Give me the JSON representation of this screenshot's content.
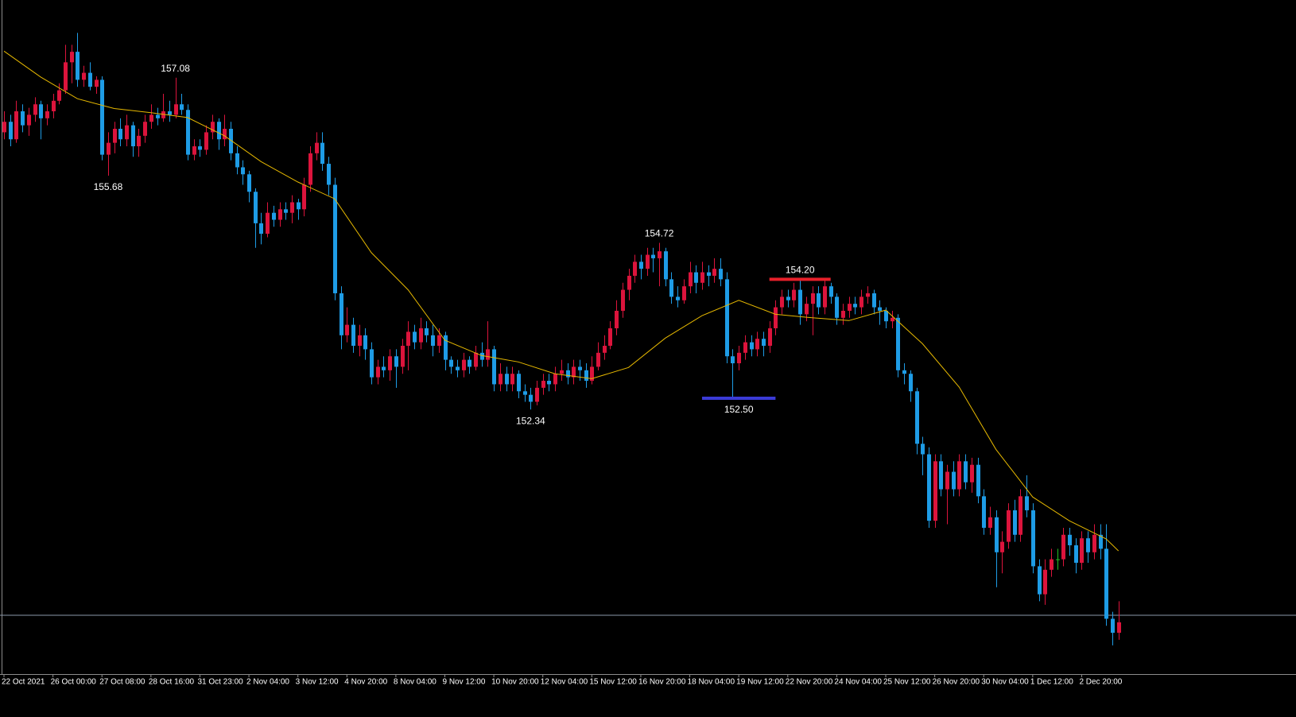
{
  "chart_data": {
    "type": "candlestick",
    "up_color": "#dc143c",
    "down_color": "#1e9ce6",
    "doji_color": "#22c022",
    "ylim": [
      148.56,
      158.19
    ],
    "xlim": [
      -0.65,
      211
    ],
    "xticks": [
      {
        "value": 0,
        "label": "22 Oct 2021"
      },
      {
        "value": 8,
        "label": "26 Oct 00:00"
      },
      {
        "value": 16,
        "label": "27 Oct 08:00"
      },
      {
        "value": 24,
        "label": "28 Oct 16:00"
      },
      {
        "value": 32,
        "label": "31 Oct 23:00"
      },
      {
        "value": 40,
        "label": "2 Nov 04:00"
      },
      {
        "value": 48,
        "label": "3 Nov 12:00"
      },
      {
        "value": 56,
        "label": "4 Nov 20:00"
      },
      {
        "value": 64,
        "label": "8 Nov 04:00"
      },
      {
        "value": 72,
        "label": "9 Nov 12:00"
      },
      {
        "value": 80,
        "label": "10 Nov 20:00"
      },
      {
        "value": 88,
        "label": "12 Nov 04:00"
      },
      {
        "value": 96,
        "label": "15 Nov 12:00"
      },
      {
        "value": 104,
        "label": "16 Nov 20:00"
      },
      {
        "value": 112,
        "label": "18 Nov 04:00"
      },
      {
        "value": 120,
        "label": "19 Nov 12:00"
      },
      {
        "value": 128,
        "label": "22 Nov 20:00"
      },
      {
        "value": 136,
        "label": "24 Nov 04:00"
      },
      {
        "value": 144,
        "label": "25 Nov 12:00"
      },
      {
        "value": 152,
        "label": "26 Nov 20:00"
      },
      {
        "value": 160,
        "label": "30 Nov 04:00"
      },
      {
        "value": 168,
        "label": "1 Dec 12:00"
      },
      {
        "value": 176,
        "label": "2 Dec 20:00"
      }
    ],
    "ohlc": [
      [
        156.3,
        156.6,
        156.2,
        156.45
      ],
      [
        156.45,
        156.55,
        156.1,
        156.2
      ],
      [
        156.2,
        156.75,
        156.15,
        156.6
      ],
      [
        156.6,
        156.7,
        156.3,
        156.4
      ],
      [
        156.4,
        156.65,
        156.25,
        156.55
      ],
      [
        156.55,
        156.8,
        156.45,
        156.7
      ],
      [
        156.7,
        156.75,
        156.2,
        156.5
      ],
      [
        156.5,
        156.7,
        156.4,
        156.6
      ],
      [
        156.6,
        156.85,
        156.5,
        156.75
      ],
      [
        156.75,
        157.0,
        156.7,
        156.9
      ],
      [
        156.9,
        157.55,
        156.85,
        157.3
      ],
      [
        157.3,
        157.55,
        157.0,
        157.45
      ],
      [
        157.45,
        157.72,
        156.95,
        157.05
      ],
      [
        157.05,
        157.25,
        156.95,
        157.15
      ],
      [
        157.15,
        157.3,
        156.9,
        156.95
      ],
      [
        156.95,
        157.1,
        156.85,
        157.05
      ],
      [
        157.05,
        157.1,
        155.9,
        155.98
      ],
      [
        155.98,
        156.3,
        155.68,
        156.15
      ],
      [
        156.15,
        156.45,
        156.0,
        156.35
      ],
      [
        156.35,
        156.5,
        156.1,
        156.2
      ],
      [
        156.2,
        156.55,
        156.1,
        156.4
      ],
      [
        156.4,
        156.45,
        155.95,
        156.1
      ],
      [
        156.1,
        156.35,
        155.95,
        156.25
      ],
      [
        156.25,
        156.55,
        156.15,
        156.45
      ],
      [
        156.45,
        156.7,
        156.35,
        156.55
      ],
      [
        156.55,
        156.65,
        156.4,
        156.5
      ],
      [
        156.5,
        156.85,
        156.45,
        156.6
      ],
      [
        156.6,
        156.75,
        156.45,
        156.55
      ],
      [
        156.55,
        157.08,
        156.5,
        156.7
      ],
      [
        156.7,
        156.85,
        156.55,
        156.62
      ],
      [
        156.62,
        156.7,
        155.9,
        155.98
      ],
      [
        155.98,
        156.2,
        155.9,
        156.1
      ],
      [
        156.1,
        156.2,
        155.95,
        156.05
      ],
      [
        156.05,
        156.4,
        155.98,
        156.3
      ],
      [
        156.3,
        156.55,
        156.2,
        156.45
      ],
      [
        156.45,
        156.5,
        156.05,
        156.2
      ],
      [
        156.2,
        156.55,
        156.1,
        156.35
      ],
      [
        156.35,
        156.45,
        155.9,
        156.0
      ],
      [
        156.0,
        156.1,
        155.7,
        155.8
      ],
      [
        155.8,
        155.9,
        155.55,
        155.7
      ],
      [
        155.7,
        155.75,
        155.3,
        155.45
      ],
      [
        155.45,
        155.5,
        154.65,
        155.0
      ],
      [
        155.0,
        155.15,
        154.7,
        154.85
      ],
      [
        154.85,
        155.3,
        154.8,
        155.15
      ],
      [
        155.15,
        155.25,
        154.95,
        155.05
      ],
      [
        155.05,
        155.3,
        154.95,
        155.2
      ],
      [
        155.2,
        155.3,
        155.05,
        155.15
      ],
      [
        155.15,
        155.4,
        155.0,
        155.3
      ],
      [
        155.3,
        155.35,
        155.05,
        155.2
      ],
      [
        155.2,
        155.65,
        155.1,
        155.55
      ],
      [
        155.55,
        156.1,
        155.45,
        156.0
      ],
      [
        156.0,
        156.3,
        155.9,
        156.15
      ],
      [
        156.15,
        156.3,
        155.75,
        155.85
      ],
      [
        155.85,
        155.95,
        155.4,
        155.55
      ],
      [
        155.55,
        155.65,
        153.9,
        154.0
      ],
      [
        154.0,
        154.1,
        153.2,
        153.4
      ],
      [
        153.4,
        153.8,
        153.3,
        153.55
      ],
      [
        153.55,
        153.65,
        153.15,
        153.25
      ],
      [
        153.25,
        153.55,
        153.1,
        153.4
      ],
      [
        153.4,
        153.5,
        153.05,
        153.2
      ],
      [
        153.2,
        153.3,
        152.7,
        152.8
      ],
      [
        152.8,
        153.05,
        152.7,
        152.95
      ],
      [
        152.95,
        153.1,
        152.8,
        152.9
      ],
      [
        152.9,
        153.2,
        152.75,
        153.1
      ],
      [
        153.1,
        153.2,
        152.65,
        152.95
      ],
      [
        152.95,
        153.35,
        152.85,
        153.25
      ],
      [
        153.25,
        153.6,
        152.9,
        153.45
      ],
      [
        153.45,
        153.55,
        153.2,
        153.3
      ],
      [
        153.3,
        153.65,
        153.2,
        153.5
      ],
      [
        153.5,
        153.6,
        153.3,
        153.4
      ],
      [
        153.4,
        153.55,
        153.1,
        153.25
      ],
      [
        153.25,
        153.5,
        153.15,
        153.4
      ],
      [
        153.4,
        153.45,
        152.9,
        153.05
      ],
      [
        153.05,
        153.1,
        152.85,
        152.95
      ],
      [
        152.95,
        153.05,
        152.8,
        152.9
      ],
      [
        152.9,
        153.15,
        152.8,
        153.05
      ],
      [
        153.05,
        153.1,
        152.85,
        152.95
      ],
      [
        152.95,
        153.25,
        152.9,
        153.15
      ],
      [
        153.15,
        153.3,
        152.95,
        153.05
      ],
      [
        153.05,
        153.6,
        152.95,
        153.2
      ],
      [
        153.2,
        153.25,
        152.6,
        152.7
      ],
      [
        152.7,
        153.0,
        152.6,
        152.85
      ],
      [
        152.85,
        152.95,
        152.6,
        152.7
      ],
      [
        152.7,
        152.95,
        152.6,
        152.85
      ],
      [
        152.85,
        152.9,
        152.5,
        152.6
      ],
      [
        152.6,
        152.7,
        152.45,
        152.55
      ],
      [
        152.55,
        152.65,
        152.34,
        152.45
      ],
      [
        152.45,
        152.75,
        152.4,
        152.65
      ],
      [
        152.65,
        152.85,
        152.55,
        152.75
      ],
      [
        152.75,
        152.85,
        152.6,
        152.7
      ],
      [
        152.7,
        152.95,
        152.6,
        152.85
      ],
      [
        152.85,
        153.05,
        152.75,
        152.9
      ],
      [
        152.9,
        153.0,
        152.7,
        152.8
      ],
      [
        152.8,
        153.05,
        152.7,
        152.95
      ],
      [
        152.95,
        153.05,
        152.75,
        152.9
      ],
      [
        152.9,
        153.0,
        152.65,
        152.75
      ],
      [
        152.75,
        153.1,
        152.7,
        152.95
      ],
      [
        152.95,
        153.3,
        152.9,
        153.15
      ],
      [
        153.15,
        153.4,
        153.05,
        153.25
      ],
      [
        153.25,
        153.6,
        153.2,
        153.5
      ],
      [
        153.5,
        153.9,
        153.4,
        153.75
      ],
      [
        153.75,
        154.15,
        153.65,
        154.05
      ],
      [
        154.05,
        154.35,
        153.9,
        154.25
      ],
      [
        154.25,
        154.55,
        154.15,
        154.45
      ],
      [
        154.45,
        154.55,
        154.2,
        154.35
      ],
      [
        154.35,
        154.65,
        154.25,
        154.55
      ],
      [
        154.55,
        154.65,
        154.3,
        154.5
      ],
      [
        154.5,
        154.72,
        154.1,
        154.6
      ],
      [
        154.6,
        154.65,
        154.1,
        154.2
      ],
      [
        154.2,
        154.3,
        153.85,
        153.95
      ],
      [
        153.95,
        154.1,
        153.8,
        153.9
      ],
      [
        153.9,
        154.2,
        153.85,
        154.1
      ],
      [
        154.1,
        154.45,
        154.0,
        154.3
      ],
      [
        154.3,
        154.4,
        154.0,
        154.15
      ],
      [
        154.15,
        154.45,
        154.05,
        154.3
      ],
      [
        154.3,
        154.4,
        154.1,
        154.25
      ],
      [
        154.25,
        154.5,
        154.15,
        154.35
      ],
      [
        154.35,
        154.5,
        154.1,
        154.2
      ],
      [
        154.2,
        154.3,
        153.0,
        153.1
      ],
      [
        153.1,
        153.2,
        152.5,
        153.0
      ],
      [
        153.0,
        153.25,
        152.9,
        153.15
      ],
      [
        153.15,
        153.4,
        153.05,
        153.3
      ],
      [
        153.3,
        153.4,
        153.1,
        153.2
      ],
      [
        153.2,
        153.45,
        153.1,
        153.35
      ],
      [
        153.35,
        153.45,
        153.1,
        153.25
      ],
      [
        153.25,
        153.6,
        153.15,
        153.5
      ],
      [
        153.5,
        153.9,
        153.4,
        153.8
      ],
      [
        153.8,
        154.05,
        153.7,
        153.95
      ],
      [
        153.95,
        154.05,
        153.8,
        153.9
      ],
      [
        153.9,
        154.15,
        153.8,
        154.05
      ],
      [
        154.05,
        154.2,
        153.55,
        153.7
      ],
      [
        153.7,
        153.95,
        153.6,
        153.85
      ],
      [
        153.85,
        154.1,
        153.4,
        154.0
      ],
      [
        154.0,
        154.1,
        153.7,
        153.8
      ],
      [
        153.8,
        154.2,
        153.7,
        154.1
      ],
      [
        154.1,
        154.15,
        153.85,
        153.95
      ],
      [
        153.95,
        154.0,
        153.55,
        153.65
      ],
      [
        153.65,
        153.85,
        153.55,
        153.75
      ],
      [
        153.75,
        153.95,
        153.65,
        153.85
      ],
      [
        153.85,
        153.95,
        153.7,
        153.8
      ],
      [
        153.8,
        154.05,
        153.7,
        153.95
      ],
      [
        153.95,
        154.1,
        153.85,
        154.0
      ],
      [
        154.0,
        154.05,
        153.7,
        153.8
      ],
      [
        153.8,
        153.9,
        153.55,
        153.75
      ],
      [
        153.75,
        153.8,
        153.5,
        153.6
      ],
      [
        153.6,
        153.75,
        153.5,
        153.65
      ],
      [
        153.65,
        153.7,
        152.8,
        152.9
      ],
      [
        152.9,
        153.0,
        152.7,
        152.85
      ],
      [
        152.85,
        152.9,
        152.45,
        152.6
      ],
      [
        152.6,
        152.65,
        151.7,
        151.85
      ],
      [
        151.85,
        151.95,
        151.4,
        151.7
      ],
      [
        151.7,
        151.8,
        150.65,
        150.75
      ],
      [
        150.75,
        151.7,
        150.65,
        151.6
      ],
      [
        151.6,
        151.7,
        151.1,
        151.2
      ],
      [
        151.2,
        151.55,
        150.7,
        151.45
      ],
      [
        151.45,
        151.6,
        151.1,
        151.2
      ],
      [
        151.2,
        151.7,
        151.1,
        151.6
      ],
      [
        151.6,
        151.7,
        151.2,
        151.3
      ],
      [
        151.3,
        151.65,
        151.15,
        151.55
      ],
      [
        151.55,
        151.65,
        151.0,
        151.1
      ],
      [
        151.1,
        151.2,
        150.55,
        150.65
      ],
      [
        150.65,
        150.95,
        150.55,
        150.8
      ],
      [
        150.8,
        150.9,
        149.8,
        150.3
      ],
      [
        150.3,
        150.6,
        150.0,
        150.45
      ],
      [
        150.45,
        151.0,
        150.35,
        150.9
      ],
      [
        150.9,
        151.05,
        150.45,
        150.55
      ],
      [
        150.55,
        151.2,
        150.45,
        151.1
      ],
      [
        151.1,
        151.4,
        150.8,
        150.9
      ],
      [
        150.9,
        151.0,
        150.0,
        150.1
      ],
      [
        150.1,
        150.2,
        149.6,
        149.7
      ],
      [
        149.7,
        150.2,
        149.55,
        150.05
      ],
      [
        150.05,
        150.35,
        149.95,
        150.2
      ],
      [
        150.2,
        150.35,
        150.05,
        150.2
      ],
      [
        150.2,
        150.65,
        150.1,
        150.55
      ],
      [
        150.55,
        150.65,
        150.25,
        150.4
      ],
      [
        150.4,
        150.5,
        150.0,
        150.15
      ],
      [
        150.15,
        150.6,
        150.05,
        150.5
      ],
      [
        150.5,
        150.6,
        150.15,
        150.3
      ],
      [
        150.3,
        150.7,
        150.2,
        150.55
      ],
      [
        150.55,
        150.7,
        150.2,
        150.35
      ],
      [
        150.35,
        150.7,
        149.25,
        149.35
      ],
      [
        149.35,
        149.45,
        148.97,
        149.15
      ],
      [
        149.15,
        149.6,
        149.05,
        149.3
      ]
    ],
    "ma": {
      "color": "#e6b800",
      "x": [
        0,
        6,
        12,
        18,
        24,
        30,
        36,
        42,
        48,
        54,
        60,
        66,
        72,
        78,
        84,
        90,
        96,
        102,
        108,
        114,
        120,
        126,
        132,
        138,
        144,
        150,
        156,
        162,
        168,
        174,
        180,
        182
      ],
      "values": [
        157.46,
        157.09,
        156.78,
        156.64,
        156.58,
        156.51,
        156.25,
        155.88,
        155.59,
        155.35,
        154.58,
        154.05,
        153.33,
        153.11,
        153.02,
        152.85,
        152.78,
        152.94,
        153.36,
        153.68,
        153.9,
        153.7,
        153.65,
        153.61,
        153.76,
        153.28,
        152.66,
        151.77,
        151.09,
        150.75,
        150.49,
        150.32
      ]
    },
    "price_line": {
      "value": 149.4,
      "color": "#8c97aa"
    },
    "annotations": [
      {
        "x": 28,
        "value": 157.08,
        "label": "157.08",
        "position": "above"
      },
      {
        "x": 17,
        "value": 155.68,
        "label": "155.68",
        "position": "below"
      },
      {
        "x": 107,
        "value": 154.72,
        "label": "154.72",
        "position": "above"
      },
      {
        "x": 86,
        "value": 152.34,
        "label": "152.34",
        "position": "below"
      },
      {
        "x": 120,
        "value": 152.5,
        "label": "152.50",
        "position": "below",
        "span": [
          114,
          126
        ],
        "color": "#3b3bd6"
      },
      {
        "x": 130,
        "value": 154.2,
        "label": "154.20",
        "position": "above",
        "span": [
          125,
          135
        ],
        "color": "#e8202a"
      }
    ]
  }
}
